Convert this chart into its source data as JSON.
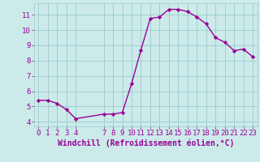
{
  "x": [
    0,
    1,
    2,
    3,
    4,
    7,
    8,
    9,
    10,
    11,
    12,
    13,
    14,
    15,
    16,
    17,
    18,
    19,
    20,
    21,
    22,
    23
  ],
  "y": [
    5.4,
    5.4,
    5.2,
    4.8,
    4.2,
    4.5,
    4.5,
    4.6,
    6.5,
    8.7,
    10.75,
    10.85,
    11.35,
    11.35,
    11.2,
    10.85,
    10.4,
    9.5,
    9.2,
    8.65,
    8.75,
    8.25
  ],
  "line_color": "#990099",
  "marker": "D",
  "marker_size": 2.2,
  "bg_color": "#cceaea",
  "grid_color": "#99cccc",
  "xlabel": "Windchill (Refroidissement éolien,°C)",
  "xlabel_color": "#990099",
  "tick_color": "#990099",
  "xlim": [
    -0.5,
    23.5
  ],
  "ylim": [
    3.7,
    11.75
  ],
  "yticks": [
    4,
    5,
    6,
    7,
    8,
    9,
    10,
    11
  ],
  "xticks": [
    0,
    1,
    2,
    3,
    4,
    7,
    8,
    9,
    10,
    11,
    12,
    13,
    14,
    15,
    16,
    17,
    18,
    19,
    20,
    21,
    22,
    23
  ],
  "line_width": 1.0,
  "font_size": 6.5,
  "xlabel_fontsize": 7.0
}
